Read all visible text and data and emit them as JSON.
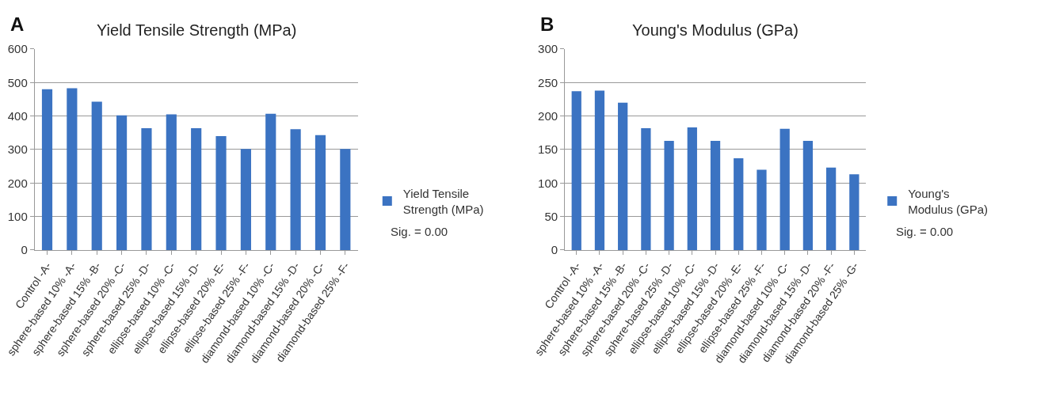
{
  "chart_data": [
    {
      "type": "bar",
      "title": "Yield Tensile Strength (MPa)",
      "categories": [
        "Control -A-",
        "sphere-based 10% -A-",
        "sphere-based 15% -B-",
        "sphere-based 20% -C-",
        "sphere-based 25% -D-",
        "ellipse-based 10% -C-",
        "ellipse-based 15% -D-",
        "ellipse-based 20% -E-",
        "ellipse-based 25% -F-",
        "diamond-based 10% -C-",
        "diamond-based 15% -D-",
        "diamond-based 20% -C-",
        "diamond-based 25% -F-"
      ],
      "series": [
        {
          "name": "Yield Tensile Strength (MPa)",
          "color": "#3b73c2",
          "values": [
            480,
            483,
            443,
            402,
            364,
            405,
            364,
            340,
            302,
            407,
            361,
            343,
            302
          ]
        }
      ],
      "ylim": [
        0,
        600
      ],
      "yticks": [
        0,
        100,
        200,
        300,
        400,
        500,
        600
      ],
      "grid": "y",
      "legend": "right",
      "annotations": [
        "A",
        "Sig. = 0.00"
      ]
    },
    {
      "type": "bar",
      "title": "Young's Modulus (GPa)",
      "categories": [
        "Control -A-",
        "sphere-based 10% -A-",
        "sphere-based 15% -B-",
        "sphere-based 20% -C-",
        "sphere-based 25% -D-",
        "ellipse-based 10% -C-",
        "ellipse-based 15% -D-",
        "ellipse-based 20% -E-",
        "ellipse-based 25% -F-",
        "diamond-based 10% -C-",
        "diamond-based 15% -D-",
        "diamond-based 20% -F-",
        "diamond-based 25% -G-"
      ],
      "series": [
        {
          "name": "Young's Modulus (GPa)",
          "color": "#3b73c2",
          "values": [
            237,
            238,
            220,
            182,
            163,
            183,
            163,
            137,
            120,
            181,
            163,
            123,
            113
          ]
        }
      ],
      "ylim": [
        0,
        300
      ],
      "yticks": [
        0,
        50,
        100,
        150,
        200,
        250,
        300
      ],
      "grid": "y",
      "legend": "right",
      "annotations": [
        "B",
        "Sig. = 0.00"
      ]
    }
  ]
}
